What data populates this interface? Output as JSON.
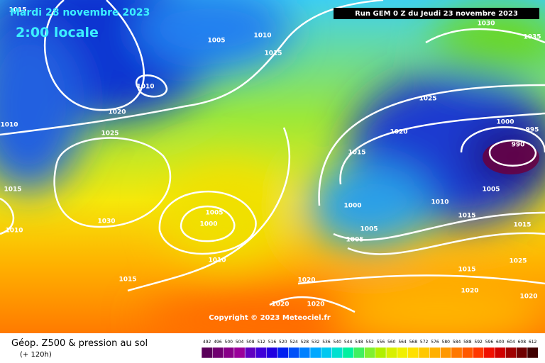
{
  "header": {
    "date": "Mardi 28 novembre 2023",
    "time": "2:00 locale",
    "run": "Run GEM 0 Z du Jeudi 23 novembre 2023",
    "copyright": "Copyright © 2023 Meteociel.fr"
  },
  "footer": {
    "title": "Géop. Z500 & pression au sol",
    "lead": "(+ 120h)",
    "scale": [
      492,
      496,
      500,
      504,
      508,
      512,
      516,
      520,
      524,
      528,
      532,
      536,
      540,
      544,
      548,
      552,
      556,
      560,
      564,
      568,
      572,
      576,
      580,
      584,
      588,
      592,
      596,
      600,
      604,
      608,
      612
    ]
  },
  "isobar_labels": [
    1015,
    1005,
    1010,
    1015,
    1030,
    1035,
    1010,
    1020,
    1010,
    1025,
    1025,
    1020,
    1000,
    995,
    990,
    1015,
    1015,
    1005,
    1000,
    1030,
    1010,
    1000,
    1010,
    1005,
    1015,
    1015,
    1005,
    1005,
    1010,
    1015,
    1020,
    1015,
    1025,
    1020,
    1020,
    1020,
    1020
  ]
}
